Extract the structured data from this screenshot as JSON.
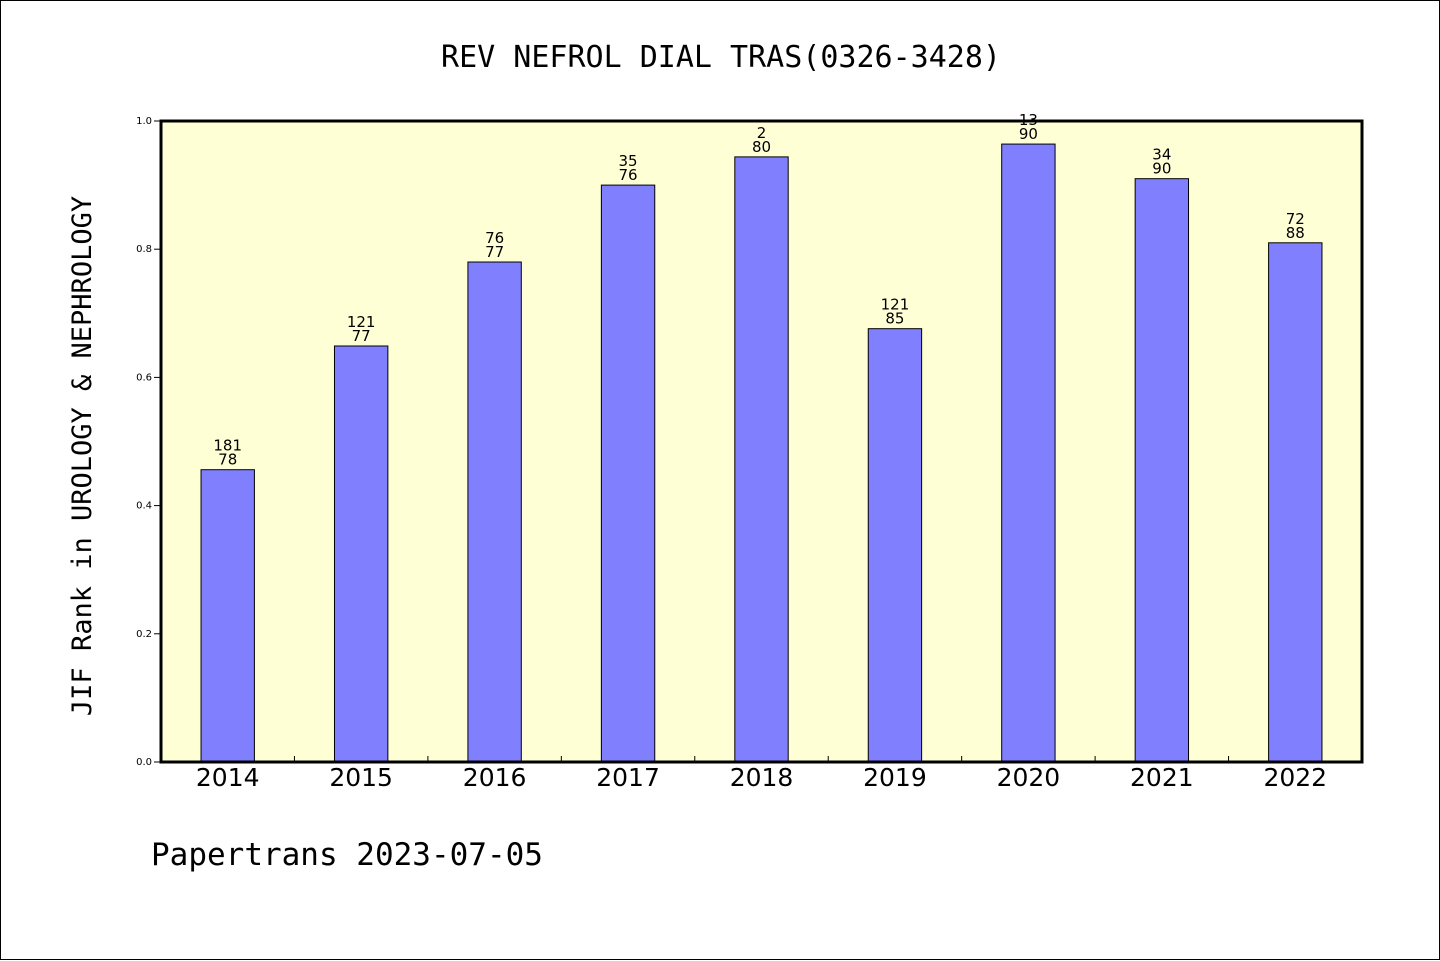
{
  "chart_data": {
    "type": "bar",
    "title": "REV NEFROL DIAL TRAS(0326-3428)",
    "ylabel": "JIF Rank in UROLOGY & NEPHROLOGY",
    "xlabel": "",
    "footer": "Papertrans 2023-07-05",
    "categories": [
      "2014",
      "2015",
      "2016",
      "2017",
      "2018",
      "2019",
      "2020",
      "2021",
      "2022"
    ],
    "values": [
      0.456,
      0.649,
      0.78,
      0.9,
      0.944,
      0.676,
      0.964,
      0.91,
      0.81
    ],
    "bar_labels": [
      {
        "rank": "181",
        "total": "78"
      },
      {
        "rank": "121",
        "total": "77"
      },
      {
        "rank": "76",
        "total": "77"
      },
      {
        "rank": "35",
        "total": "76"
      },
      {
        "rank": "2",
        "total": "80"
      },
      {
        "rank": "121",
        "total": "85"
      },
      {
        "rank": "13",
        "total": "90"
      },
      {
        "rank": "34",
        "total": "90"
      },
      {
        "rank": "72",
        "total": "88"
      }
    ],
    "ylim": [
      0,
      1.0
    ],
    "yticks": [
      "0.0",
      "0.2",
      "0.4",
      "0.6",
      "0.8",
      "1.0"
    ],
    "grid": false,
    "colors": {
      "bar": "#8080ff",
      "plot_background": "#ffffd5",
      "axis": "#000000"
    }
  }
}
